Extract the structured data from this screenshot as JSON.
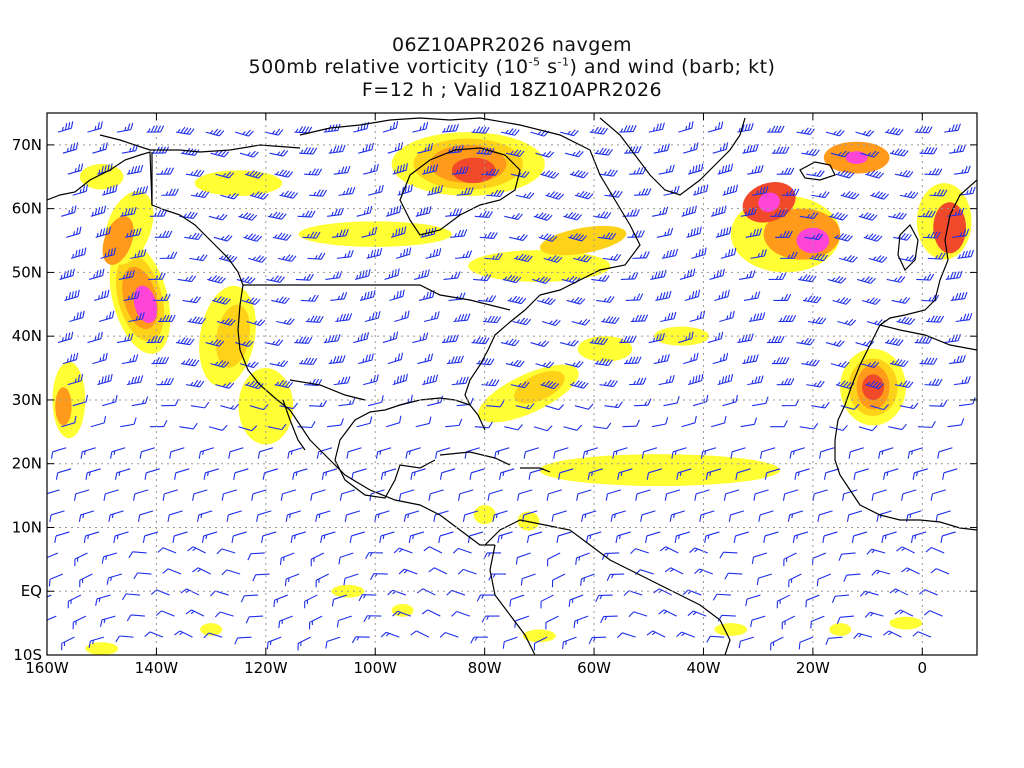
{
  "title": {
    "line1": "06Z10APR2026 navgem",
    "line2_prefix": "500mb relative vorticity (10",
    "line2_exp1": "-5",
    "line2_mid": " s",
    "line2_exp2": "-1",
    "line2_suffix": ") and wind (barb; kt)",
    "line3": "F=12 h ; Valid 18Z10APR2026"
  },
  "map": {
    "projection": "cylindrical equidistant",
    "lon_range": [
      -160,
      10
    ],
    "lat_range": [
      -10,
      75
    ],
    "x_tick_labels": [
      "160W",
      "140W",
      "120W",
      "100W",
      "80W",
      "60W",
      "40W",
      "20W",
      "0"
    ],
    "y_tick_labels": [
      "70N",
      "60N",
      "50N",
      "40N",
      "30N",
      "20N",
      "10N",
      "EQ",
      "10S"
    ],
    "grid": "dotted every 20 deg lon / 10 deg lat",
    "colors": {
      "barb": "#1f2fe8",
      "coast": "#000000",
      "grid": "#9a9a9a",
      "shade_levels": [
        "#ffff33",
        "#ffd21a",
        "#ff9a1a",
        "#f04a2a",
        "#ff44d8"
      ]
    }
  }
}
